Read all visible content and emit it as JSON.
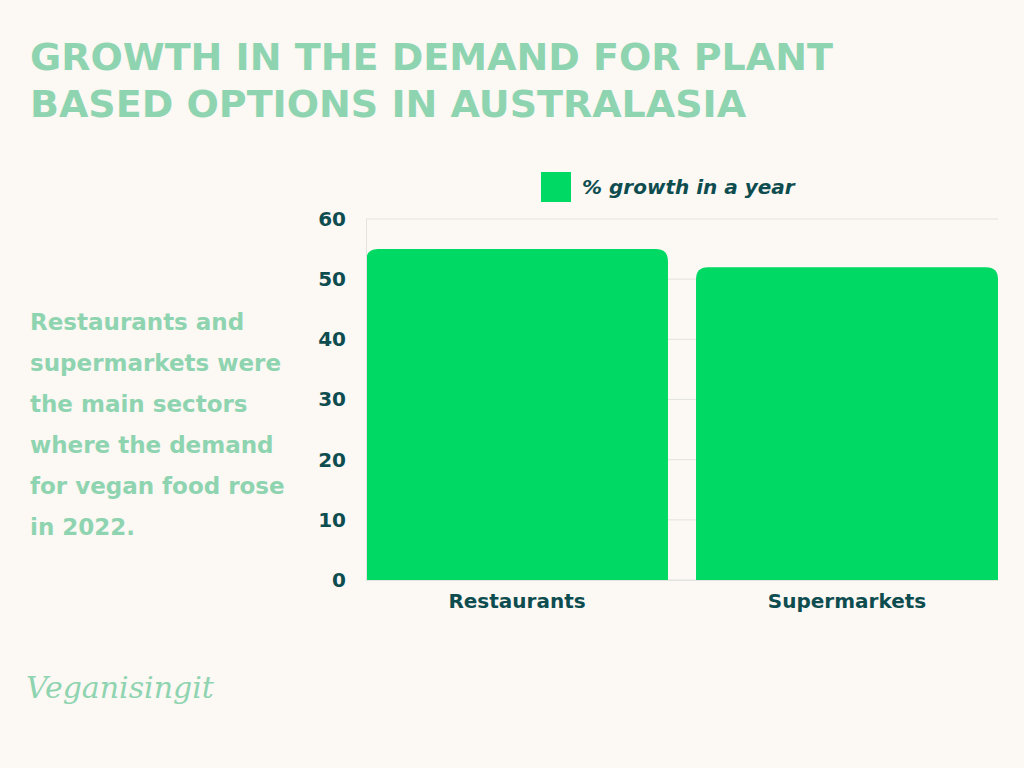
{
  "chart_data": {
    "type": "bar",
    "title": "GROWTH IN THE DEMAND FOR PLANT BASED OPTIONS IN AUSTRALASIA",
    "annotations": [
      "Restaurants and supermarkets were the main sectors where the demand for vegan food rose in 2022.",
      "Veganisingit"
    ],
    "categories": [
      "Restaurants",
      "Supermarkets"
    ],
    "series": [
      {
        "name": "% growth in a year",
        "color": "#00d964",
        "values": [
          55,
          52
        ]
      }
    ],
    "ylim": [
      0,
      60
    ],
    "yticks": [
      0,
      10,
      20,
      30,
      40,
      50,
      60
    ],
    "grid": true,
    "legend": "top"
  }
}
